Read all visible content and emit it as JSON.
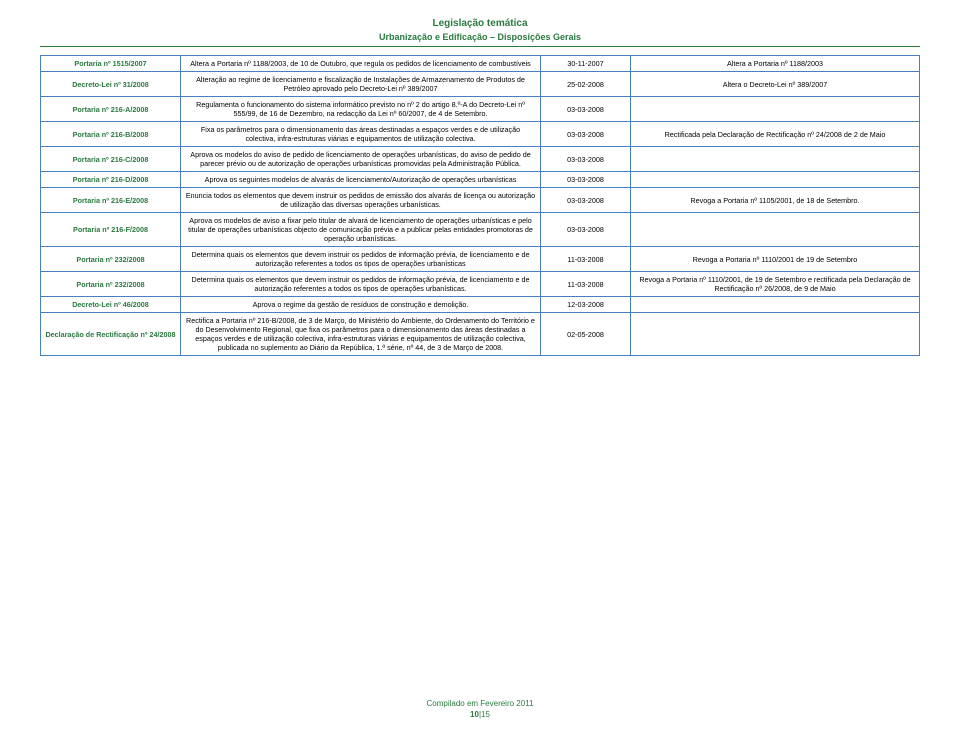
{
  "header": {
    "main": "Legislação temática",
    "sub": "Urbanização e Edificação – Disposições Gerais"
  },
  "rows": [
    {
      "left": "Portaria nº 1515/2007",
      "desc": "Altera a Portaria nº 1188/2003, de 10 de Outubro, que regula os pedidos de licenciamento de combustíveis",
      "date": "30-11-2007",
      "right": "Altera a Portaria nº 1188/2003"
    },
    {
      "left": "Decreto-Lei nº 31/2008",
      "desc": "Alteração ao regime de licenciamento e fiscalização de Instalações de Armazenamento de Produtos de Petróleo aprovado pelo Decreto-Lei nº 389/2007",
      "date": "25-02-2008",
      "right": "Altera o Decreto-Lei nº 389/2007"
    },
    {
      "left": "Portaria nº 216-A/2008",
      "desc": "Regulamenta o funcionamento do sistema informático previsto no nº 2 do artigo 8.º-A do Decreto-Lei nº 555/99, de 16 de Dezembro, na redacção da Lei nº 60/2007, de 4 de Setembro.",
      "date": "03-03-2008",
      "right": ""
    },
    {
      "left": "Portaria nº 216-B/2008",
      "desc": "Fixa os parâmetros para o dimensionamento das áreas destinadas a espaços verdes e de utilização colectiva, infra-estruturas viárias e equipamentos de utilização colectiva.",
      "date": "03-03-2008",
      "right": "Rectificada pela Declaração de Rectificação nº 24/2008 de 2 de Maio"
    },
    {
      "left": "Portaria nº 216-C/2008",
      "desc": "Aprova os modelos do aviso de pedido de licenciamento de operações urbanísticas, do aviso de pedido de parecer prévio ou de autorização de operações urbanísticas promovidas pela Administração Pública.",
      "date": "03-03-2008",
      "right": ""
    },
    {
      "left": "Portaria nº 216-D/2008",
      "desc": "Aprova os seguintes modelos de alvarás de licenciamento/Autorização de operações urbanísticas",
      "date": "03-03-2008",
      "right": ""
    },
    {
      "left": "Portaria nº 216-E/2008",
      "desc": "Enuncia todos os elementos que devem instruir os pedidos de emissão dos alvarás de licença ou autorização de utilização das diversas operações urbanísticas.",
      "date": "03-03-2008",
      "right": "Revoga a Portaria nº 1105/2001, de 18 de Setembro."
    },
    {
      "left": "Portaria nº 216-F/2008",
      "desc": "Aprova os modelos de aviso a fixar pelo titular de alvará de licenciamento de operações urbanísticas e pelo titular de operações urbanísticas objecto de comunicação prévia e a publicar pelas entidades promotoras de operação urbanísticas.",
      "date": "03-03-2008",
      "right": ""
    },
    {
      "left": "Portaria nº 232/2008",
      "desc": "Determina quais os elementos que devem instruir os pedidos de informação prévia, de licenciamento e de autorização referentes a todos os tipos de operações urbanísticas",
      "date": "11-03-2008",
      "right": "Revoga a Portaria nº 1110/2001 de 19 de Setembro"
    },
    {
      "left": "Portaria nº 232/2008",
      "desc": "Determina quais os elementos que devem instruir os pedidos de informação prévia, de licenciamento e de autorização referentes a todos os tipos de operações urbanísticas.",
      "date": "11-03-2008",
      "right": "Revoga a Portaria nº 1110/2001, de 19 de Setembro e rectificada pela Declaração de Rectificação nº 26/2008, de 9 de Maio"
    },
    {
      "left": "Decreto-Lei nº 46/2008",
      "desc": "Aprova o regime da gestão de resíduos de construção e demolição.",
      "date": "12-03-2008",
      "right": ""
    },
    {
      "left": "Declaração de Rectificação nº 24/2008",
      "desc": "Rectifica a Portaria nº 216-B/2008, de 3 de Março, do Ministério do Ambiente, do Ordenamento do Território e do Desenvolvimento Regional, que fixa os parâmetros para o dimensionamento das áreas destinadas a espaços verdes e de utilização colectiva, infra-estruturas viárias e equipamentos de utilização colectiva, publicada no suplemento ao Diário da República, 1.ª série, nº 44, de 3 de Março de 2008.",
      "date": "02-05-2008",
      "right": ""
    }
  ],
  "footer": {
    "compiled": "Compilado em Fevereiro 2011",
    "page_current": "10",
    "page_sep": "|",
    "page_total": "15"
  },
  "style": {
    "accent_green": "#2a7a3f",
    "border_blue": "#4a7fbf",
    "bg": "#ffffff",
    "body_font_size": 7.2,
    "title_main_size": 10,
    "title_sub_size": 9
  }
}
